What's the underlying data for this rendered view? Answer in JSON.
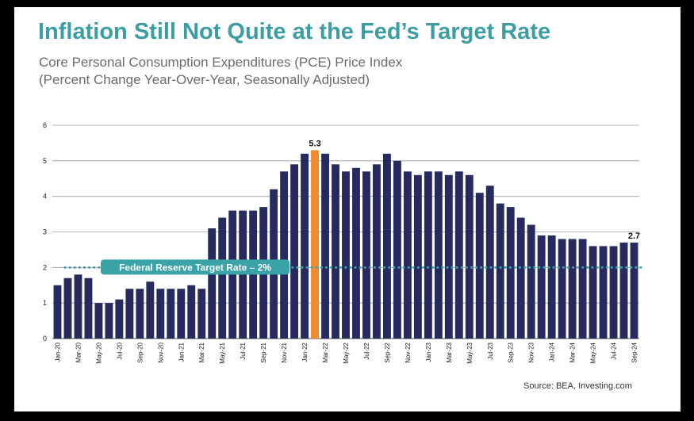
{
  "title": "Inflation Still Not Quite at the Fed’s Target Rate",
  "subtitle_line1": "Core Personal Consumption Expenditures (PCE) Price Index",
  "subtitle_line2": "(Percent Change Year-Over-Year, Seasonally Adjusted)",
  "source": "Source: BEA, Investing.com",
  "colors": {
    "bar": "#262a5e",
    "highlight_bar": "#f08a2c",
    "title": "#3b9ea3",
    "target_line": "#3aa3a8",
    "target_label_bg": "#3aa3a8"
  },
  "chart_data": {
    "type": "bar",
    "categories": [
      "Jan-20",
      "Feb-20",
      "Mar-20",
      "Apr-20",
      "May-20",
      "Jun-20",
      "Jul-20",
      "Aug-20",
      "Sep-20",
      "Oct-20",
      "Nov-20",
      "Dec-20",
      "Jan-21",
      "Feb-21",
      "Mar-21",
      "Apr-21",
      "May-21",
      "Jun-21",
      "Jul-21",
      "Aug-21",
      "Sep-21",
      "Oct-21",
      "Nov-21",
      "Dec-21",
      "Jan-22",
      "Feb-22",
      "Mar-22",
      "Apr-22",
      "May-22",
      "Jun-22",
      "Jul-22",
      "Aug-22",
      "Sep-22",
      "Oct-22",
      "Nov-22",
      "Dec-22",
      "Jan-23",
      "Feb-23",
      "Mar-23",
      "Apr-23",
      "May-23",
      "Jun-23",
      "Jul-23",
      "Aug-23",
      "Sep-23",
      "Oct-23",
      "Nov-23",
      "Dec-23",
      "Jan-24",
      "Feb-24",
      "Mar-24",
      "Apr-24",
      "May-24",
      "Jun-24",
      "Jul-24",
      "Aug-24",
      "Sep-24"
    ],
    "x_tick_labels": [
      "Jan-20",
      "Mar-20",
      "May-20",
      "Jul-20",
      "Sep-20",
      "Nov-20",
      "Jan-21",
      "Mar-21",
      "May-21",
      "Jul-21",
      "Sep-21",
      "Nov-21",
      "Jan-22",
      "Mar-22",
      "May-22",
      "Jul-22",
      "Sep-22",
      "Nov-22",
      "Jan-23",
      "Mar-23",
      "May-23",
      "Jul-23",
      "Sep-23",
      "Nov-23",
      "Jan-24",
      "Mar-24",
      "May-24",
      "Jul-24",
      "Sep-24"
    ],
    "values": [
      1.5,
      1.7,
      1.8,
      1.7,
      1.0,
      1.0,
      1.1,
      1.4,
      1.4,
      1.6,
      1.4,
      1.4,
      1.4,
      1.5,
      1.4,
      3.1,
      3.4,
      3.6,
      3.6,
      3.6,
      3.7,
      4.2,
      4.7,
      4.9,
      5.2,
      5.3,
      5.2,
      4.9,
      4.7,
      4.8,
      4.7,
      4.9,
      5.2,
      5.0,
      4.7,
      4.6,
      4.7,
      4.7,
      4.6,
      4.7,
      4.6,
      4.1,
      4.3,
      3.8,
      3.7,
      3.4,
      3.2,
      2.9,
      2.9,
      2.8,
      2.8,
      2.8,
      2.6,
      2.6,
      2.6,
      2.7,
      2.7
    ],
    "highlight_category": "Feb-22",
    "data_labels": [
      {
        "category": "Feb-22",
        "text": "5.3"
      },
      {
        "category": "Sep-24",
        "text": "2.7"
      }
    ],
    "ylim": [
      0,
      6
    ],
    "y_ticks": [
      0,
      1,
      2,
      3,
      4,
      5,
      6
    ],
    "grid": true,
    "reference_line": {
      "value": 2,
      "label": "Federal Reserve Target Rate – 2%",
      "style": "dotted"
    },
    "xlabel": "",
    "ylabel": ""
  }
}
